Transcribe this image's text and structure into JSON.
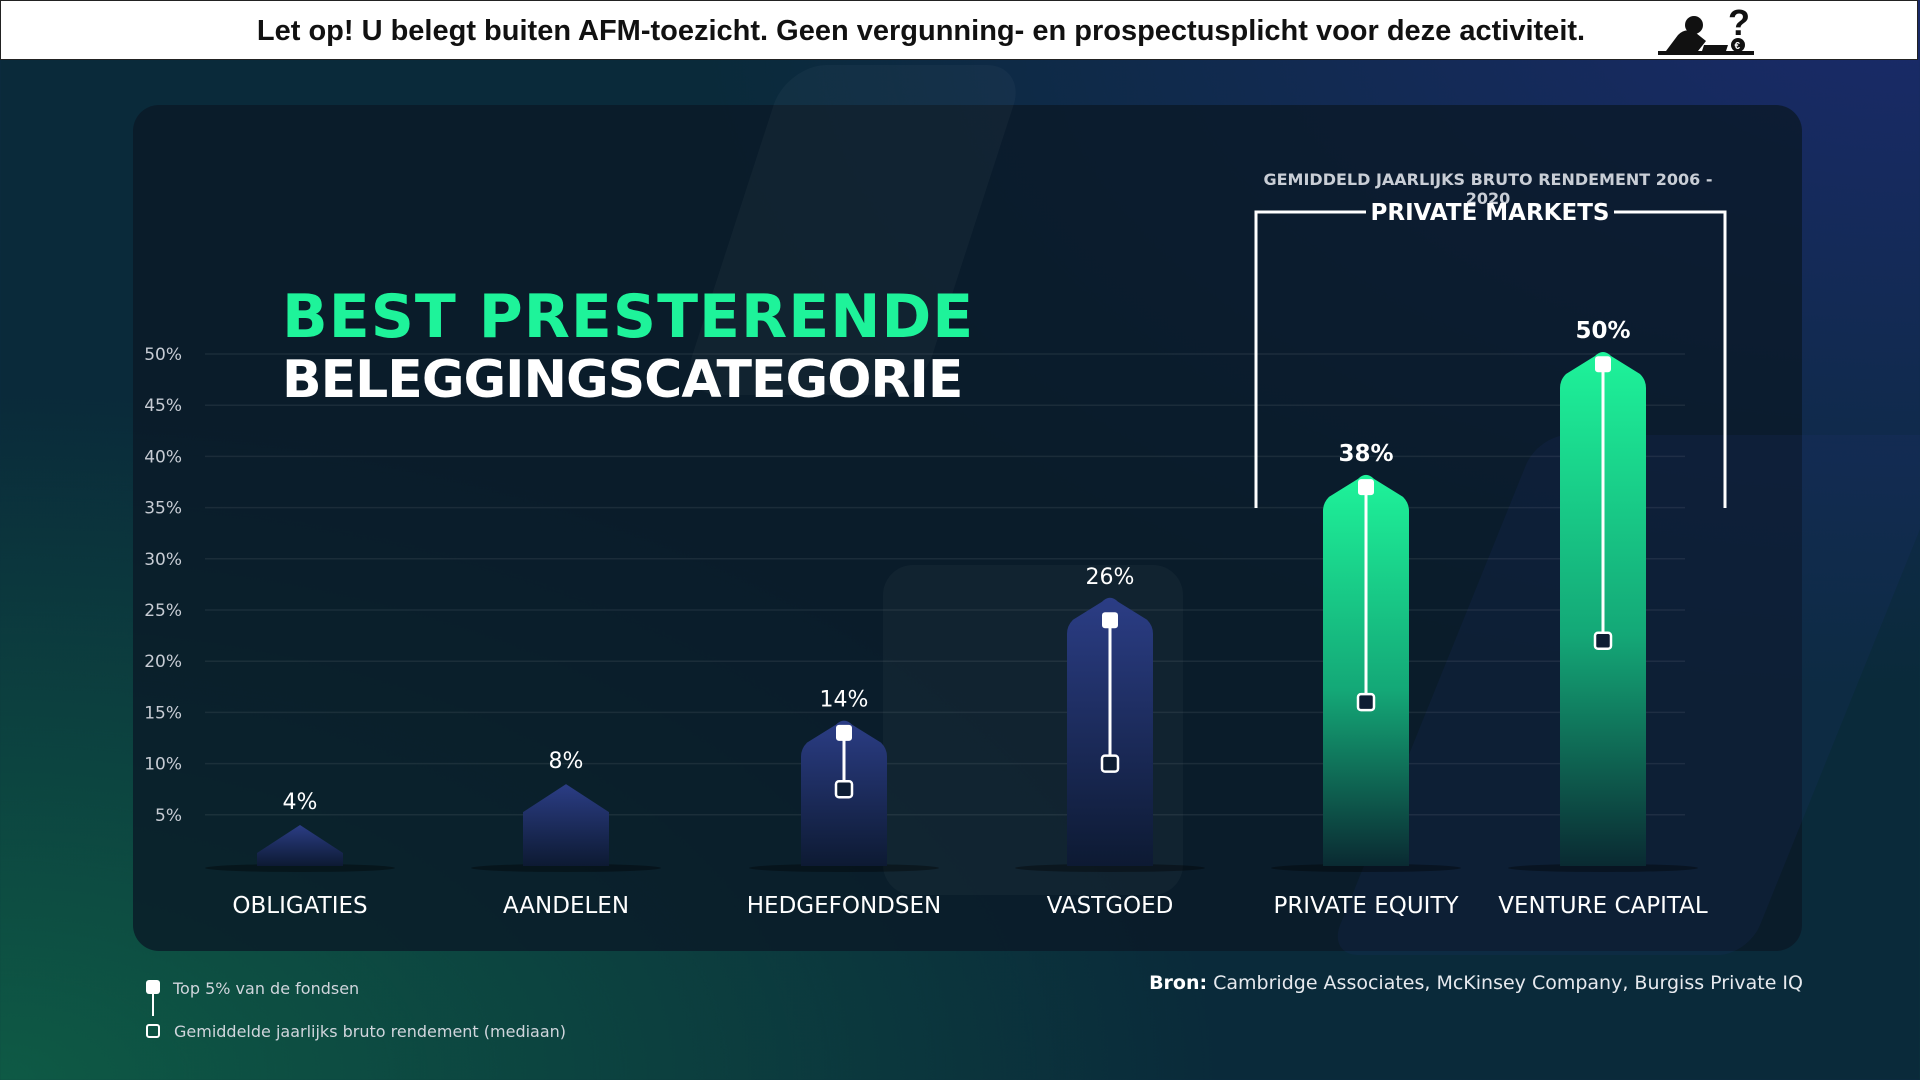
{
  "banner": {
    "warning": "Let op! U belegt buiten AFM-toezicht. Geen vergunning- en prospectusplicht voor deze activiteit."
  },
  "heading": {
    "line1": "BEST PRESTERENDE",
    "line2": "BELEGGINGSCATEGORIE"
  },
  "private_markets": {
    "subtitle": "GEMIDDELD JAARLIJKS BRUTO RENDEMENT 2006 - 2020",
    "label": "PRIVATE MARKETS"
  },
  "legend": {
    "top": "Top 5% van de fondsen",
    "median": "Gemiddelde jaarlijks bruto rendement (mediaan)"
  },
  "source": {
    "label": "Bron:",
    "text": "Cambridge Associates, McKinsey Company, Burgiss Private IQ"
  },
  "colors": {
    "accent": "#1ef39a",
    "navy_bar": "#2a3a7a",
    "green_bar": "#1ef39a"
  },
  "chart_data": {
    "type": "bar",
    "categories": [
      "OBLIGATIES",
      "AANDELEN",
      "HEDGEFONDSEN",
      "VASTGOED",
      "PRIVATE EQUITY",
      "VENTURE CAPITAL"
    ],
    "values": [
      4,
      8,
      14,
      26,
      38,
      50
    ],
    "value_labels": [
      "4%",
      "8%",
      "14%",
      "26%",
      "38%",
      "50%"
    ],
    "top5": [
      null,
      null,
      13,
      24,
      37,
      49
    ],
    "median": [
      null,
      null,
      7.5,
      10,
      16,
      22
    ],
    "highlight": [
      false,
      false,
      false,
      false,
      true,
      true
    ],
    "yticks": [
      "5%",
      "10%",
      "15%",
      "20%",
      "25%",
      "30%",
      "35%",
      "40%",
      "45%",
      "50%"
    ],
    "ytick_values": [
      5,
      10,
      15,
      20,
      25,
      30,
      35,
      40,
      45,
      50
    ],
    "ylim": [
      0,
      50
    ],
    "grid": true
  }
}
